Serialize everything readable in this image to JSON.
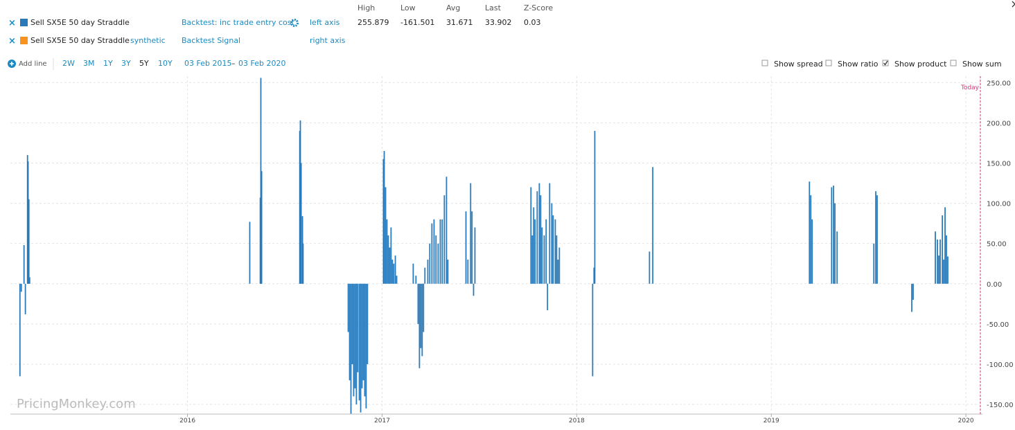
{
  "legend": [
    {
      "name": "Sell SX5E 50 day Straddle",
      "color": "#2a7ab9",
      "backtest": "Backtest: inc trade entry cost",
      "axis": "left axis",
      "stats": [
        "255.879",
        "-161.501",
        "31.671",
        "33.902",
        "0.03"
      ]
    },
    {
      "name": "Sell SX5E 50 day Straddle",
      "color": "#f7931e",
      "source": "synthetic",
      "backtest": "Backtest Signal",
      "axis": "right axis"
    }
  ],
  "stats_headers": [
    "High",
    "Low",
    "Avg",
    "Last",
    "Z-Score"
  ],
  "toolbar": {
    "add_line": "Add line",
    "ranges": [
      "2W",
      "3M",
      "1Y",
      "3Y",
      "5Y",
      "10Y"
    ],
    "active_range_index": 4,
    "date_from": "03 Feb 2015",
    "date_sep": "–",
    "date_to": "03 Feb 2020",
    "options": [
      {
        "label": "Show spread",
        "checked": false
      },
      {
        "label": "Show ratio",
        "checked": false
      },
      {
        "label": "Show product",
        "checked": true
      },
      {
        "label": "Show sum",
        "checked": false
      }
    ]
  },
  "watermark": "PricingMonkey.com",
  "chart_data": {
    "type": "bar",
    "color": "#2a7ab9",
    "today_label": "Today",
    "grid": true,
    "xlim": [
      2015.09,
      2020.085
    ],
    "xticks": [
      2016,
      2017,
      2018,
      2019,
      2020
    ],
    "ylim": [
      -162,
      258
    ],
    "yticks": [
      {
        "value": -150,
        "label": "-150.00"
      },
      {
        "value": -100,
        "label": "-100.00"
      },
      {
        "value": -50,
        "label": "-50.00"
      },
      {
        "value": 0,
        "label": "0.00"
      },
      {
        "value": 50,
        "label": "50.00"
      },
      {
        "value": 100,
        "label": "100.00"
      },
      {
        "value": 150,
        "label": "150.00"
      },
      {
        "value": 200,
        "label": "200.00"
      },
      {
        "value": 250,
        "label": "250.00"
      }
    ],
    "x": [
      2015.139,
      2015.146,
      2015.16,
      2015.167,
      2015.178,
      2015.181,
      2015.185,
      2015.189,
      2016.32,
      2016.374,
      2016.377,
      2016.381,
      2016.577,
      2016.58,
      2016.584,
      2016.591,
      2016.594,
      2016.826,
      2016.833,
      2016.84,
      2016.847,
      2016.854,
      2016.861,
      2016.868,
      2016.875,
      2016.883,
      2016.89,
      2016.897,
      2016.904,
      2016.911,
      2016.918,
      2016.925,
      2017.007,
      2017.011,
      2017.018,
      2017.025,
      2017.032,
      2017.039,
      2017.046,
      2017.053,
      2017.06,
      2017.068,
      2017.075,
      2017.16,
      2017.174,
      2017.185,
      2017.192,
      2017.199,
      2017.206,
      2017.213,
      2017.22,
      2017.235,
      2017.245,
      2017.256,
      2017.267,
      2017.277,
      2017.288,
      2017.299,
      2017.309,
      2017.32,
      2017.331,
      2017.338,
      2017.431,
      2017.441,
      2017.455,
      2017.462,
      2017.47,
      2017.477,
      2017.765,
      2017.772,
      2017.779,
      2017.786,
      2017.797,
      2017.808,
      2017.815,
      2017.822,
      2017.833,
      2017.843,
      2017.85,
      2017.861,
      2017.872,
      2017.879,
      2017.89,
      2017.897,
      2017.904,
      2017.911,
      2018.082,
      2018.089,
      2018.093,
      2018.374,
      2018.391,
      2019.196,
      2019.203,
      2019.21,
      2019.31,
      2019.32,
      2019.327,
      2019.338,
      2019.527,
      2019.537,
      2019.544,
      2019.722,
      2019.729,
      2019.843,
      2019.854,
      2019.861,
      2019.868,
      2019.879,
      2019.886,
      2019.893,
      2019.9,
      2019.907
    ],
    "values": [
      -115,
      -10,
      48,
      -38,
      160,
      152,
      105,
      8,
      77,
      107,
      255.879,
      140,
      190,
      203,
      150,
      84,
      50,
      -60,
      -120,
      -161.501,
      -100,
      -140,
      -130,
      -150,
      -110,
      -145,
      -160,
      -130,
      -120,
      -140,
      -155,
      -100,
      155,
      165,
      120,
      80,
      60,
      45,
      70,
      30,
      25,
      35,
      10,
      25,
      10,
      -50,
      -105,
      -80,
      -90,
      -60,
      20,
      30,
      50,
      75,
      80,
      60,
      50,
      80,
      80,
      110,
      133,
      30,
      90,
      30,
      125,
      90,
      -15,
      70,
      120,
      60,
      95,
      80,
      115,
      125,
      110,
      70,
      60,
      80,
      -33,
      125,
      100,
      85,
      80,
      60,
      30,
      45,
      -115,
      20,
      190,
      40,
      145,
      127,
      110,
      80,
      120,
      122,
      100,
      65,
      50,
      115,
      110,
      -35,
      -20,
      65,
      55,
      35,
      55,
      85,
      30,
      95,
      60,
      33.902
    ]
  }
}
